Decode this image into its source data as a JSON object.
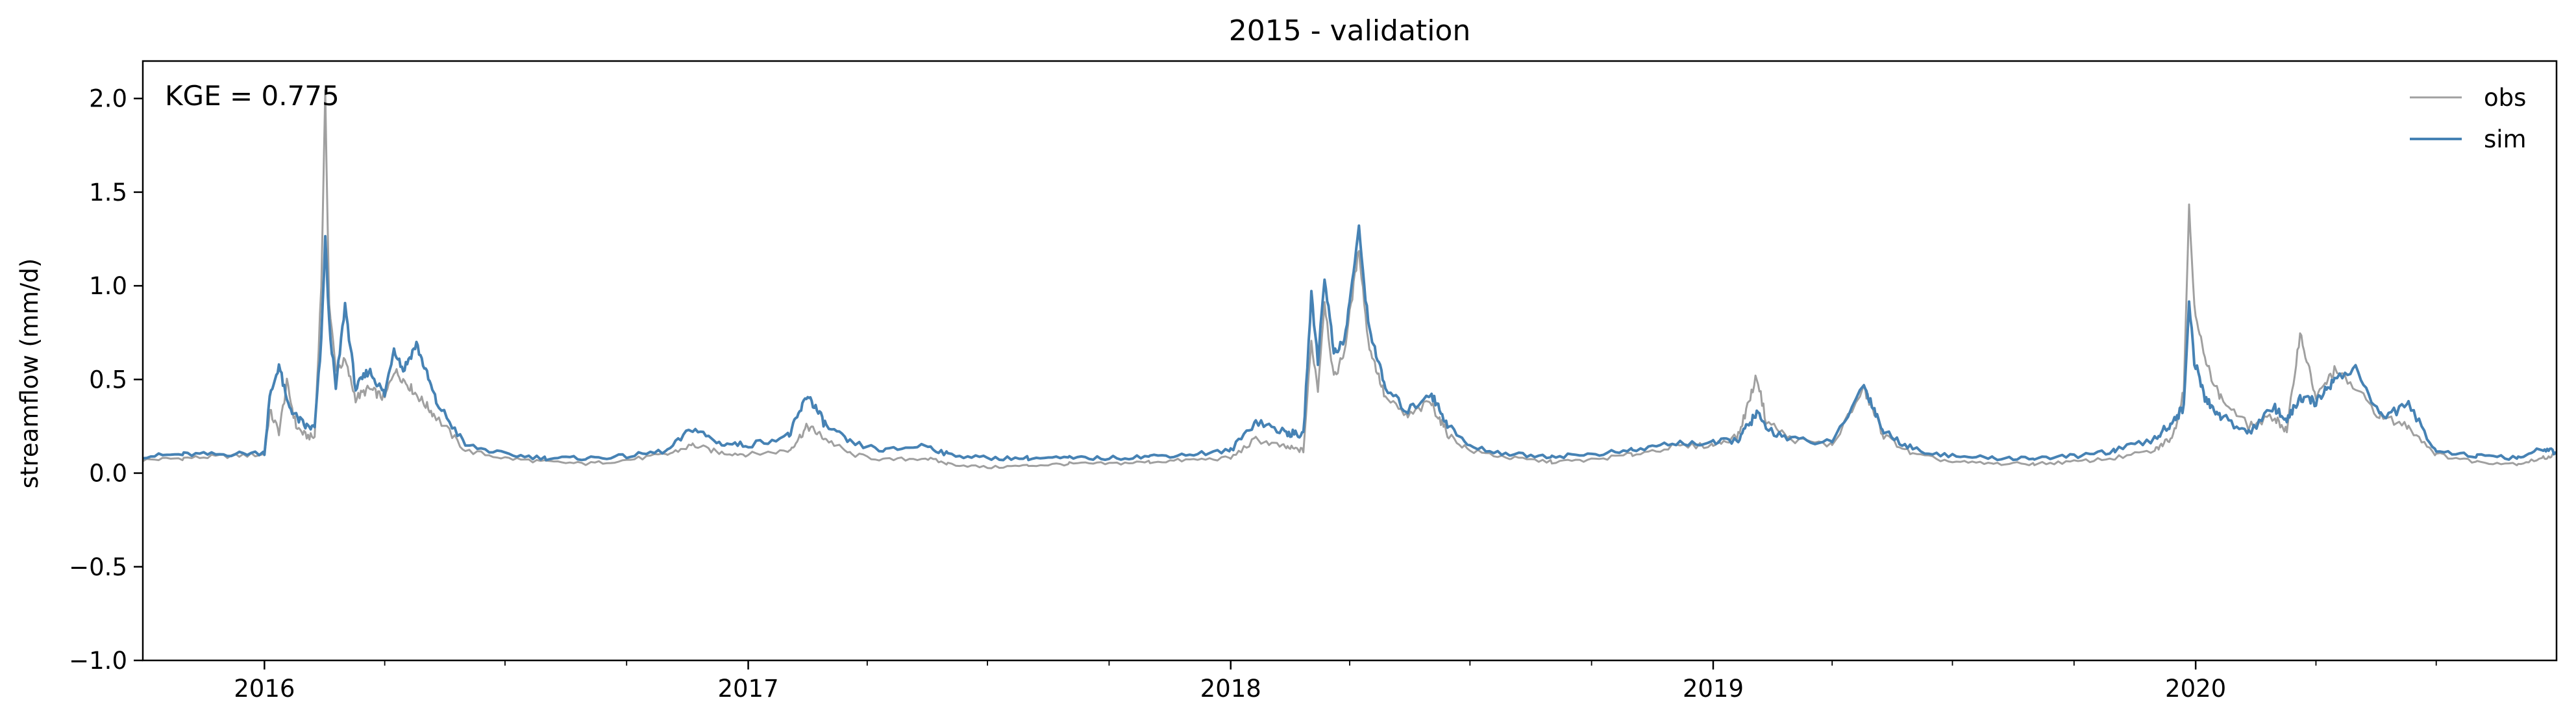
{
  "chart_data": {
    "type": "line",
    "title": "2015 - validation",
    "xlabel": "",
    "ylabel": "streamflow (mm/d)",
    "annotation": "KGE = 0.775",
    "xlim": [
      "2015-10-01",
      "2020-09-30"
    ],
    "ylim": [
      -1.0,
      2.2
    ],
    "x_ticks": [
      "2016-01-01",
      "2017-01-01",
      "2018-01-01",
      "2019-01-01",
      "2020-01-01"
    ],
    "x_tick_labels": [
      "2016",
      "2017",
      "2018",
      "2019",
      "2020"
    ],
    "y_ticks": [
      -1.0,
      -0.5,
      0.0,
      0.5,
      1.0,
      1.5,
      2.0
    ],
    "y_tick_labels": [
      "−1.0",
      "−0.5",
      "0.0",
      "0.5",
      "1.0",
      "1.5",
      "2.0"
    ],
    "grid": false,
    "legend": "top-right",
    "series": [
      {
        "name": "obs",
        "color": "#a0a0a0",
        "points": [
          [
            "2015-10-01",
            0.07
          ],
          [
            "2015-11-01",
            0.08
          ],
          [
            "2015-12-01",
            0.09
          ],
          [
            "2016-01-01",
            0.1
          ],
          [
            "2016-01-05",
            0.33
          ],
          [
            "2016-01-12",
            0.22
          ],
          [
            "2016-01-18",
            0.48
          ],
          [
            "2016-01-25",
            0.25
          ],
          [
            "2016-02-01",
            0.2
          ],
          [
            "2016-02-08",
            0.19
          ],
          [
            "2016-02-13",
            1.0
          ],
          [
            "2016-02-16",
            2.02
          ],
          [
            "2016-02-19",
            0.9
          ],
          [
            "2016-02-24",
            0.55
          ],
          [
            "2016-03-02",
            0.6
          ],
          [
            "2016-03-10",
            0.4
          ],
          [
            "2016-03-20",
            0.45
          ],
          [
            "2016-04-01",
            0.4
          ],
          [
            "2016-04-08",
            0.55
          ],
          [
            "2016-04-15",
            0.5
          ],
          [
            "2016-04-25",
            0.42
          ],
          [
            "2016-05-10",
            0.3
          ],
          [
            "2016-06-01",
            0.12
          ],
          [
            "2016-07-01",
            0.08
          ],
          [
            "2016-08-01",
            0.06
          ],
          [
            "2016-09-01",
            0.05
          ],
          [
            "2016-10-01",
            0.07
          ],
          [
            "2016-11-01",
            0.1
          ],
          [
            "2016-11-20",
            0.15
          ],
          [
            "2016-12-10",
            0.11
          ],
          [
            "2017-01-01",
            0.1
          ],
          [
            "2017-02-01",
            0.12
          ],
          [
            "2017-02-15",
            0.25
          ],
          [
            "2017-03-01",
            0.18
          ],
          [
            "2017-03-20",
            0.1
          ],
          [
            "2017-04-15",
            0.07
          ],
          [
            "2017-05-15",
            0.08
          ],
          [
            "2017-06-01",
            0.05
          ],
          [
            "2017-07-01",
            0.03
          ],
          [
            "2017-08-01",
            0.04
          ],
          [
            "2017-09-01",
            0.05
          ],
          [
            "2017-10-01",
            0.05
          ],
          [
            "2017-11-01",
            0.06
          ],
          [
            "2017-12-01",
            0.07
          ],
          [
            "2018-01-01",
            0.08
          ],
          [
            "2018-01-20",
            0.18
          ],
          [
            "2018-02-10",
            0.14
          ],
          [
            "2018-02-25",
            0.12
          ],
          [
            "2018-03-03",
            0.7
          ],
          [
            "2018-03-08",
            0.45
          ],
          [
            "2018-03-13",
            0.92
          ],
          [
            "2018-03-20",
            0.5
          ],
          [
            "2018-03-28",
            0.65
          ],
          [
            "2018-04-08",
            1.2
          ],
          [
            "2018-04-15",
            0.7
          ],
          [
            "2018-04-28",
            0.4
          ],
          [
            "2018-05-15",
            0.3
          ],
          [
            "2018-06-01",
            0.38
          ],
          [
            "2018-06-15",
            0.2
          ],
          [
            "2018-07-01",
            0.12
          ],
          [
            "2018-08-01",
            0.08
          ],
          [
            "2018-09-01",
            0.06
          ],
          [
            "2018-10-01",
            0.07
          ],
          [
            "2018-11-01",
            0.1
          ],
          [
            "2018-12-01",
            0.14
          ],
          [
            "2019-01-01",
            0.15
          ],
          [
            "2019-01-20",
            0.2
          ],
          [
            "2019-02-03",
            0.52
          ],
          [
            "2019-02-10",
            0.28
          ],
          [
            "2019-03-01",
            0.18
          ],
          [
            "2019-04-01",
            0.15
          ],
          [
            "2019-04-25",
            0.45
          ],
          [
            "2019-05-10",
            0.2
          ],
          [
            "2019-06-01",
            0.1
          ],
          [
            "2019-07-01",
            0.06
          ],
          [
            "2019-08-01",
            0.05
          ],
          [
            "2019-09-01",
            0.05
          ],
          [
            "2019-10-01",
            0.06
          ],
          [
            "2019-11-01",
            0.08
          ],
          [
            "2019-12-01",
            0.12
          ],
          [
            "2019-12-15",
            0.2
          ],
          [
            "2019-12-23",
            0.45
          ],
          [
            "2019-12-27",
            1.42
          ],
          [
            "2019-12-31",
            0.9
          ],
          [
            "2020-01-08",
            0.6
          ],
          [
            "2020-01-20",
            0.4
          ],
          [
            "2020-02-10",
            0.25
          ],
          [
            "2020-03-01",
            0.3
          ],
          [
            "2020-03-10",
            0.22
          ],
          [
            "2020-03-20",
            0.75
          ],
          [
            "2020-04-01",
            0.4
          ],
          [
            "2020-04-15",
            0.55
          ],
          [
            "2020-05-01",
            0.45
          ],
          [
            "2020-05-20",
            0.3
          ],
          [
            "2020-06-10",
            0.25
          ],
          [
            "2020-07-01",
            0.1
          ],
          [
            "2020-08-01",
            0.06
          ],
          [
            "2020-09-01",
            0.05
          ],
          [
            "2020-09-20",
            0.08
          ],
          [
            "2020-09-30",
            0.1
          ]
        ]
      },
      {
        "name": "sim",
        "color": "#4682b4",
        "points": [
          [
            "2015-10-01",
            0.09
          ],
          [
            "2015-11-01",
            0.1
          ],
          [
            "2015-12-01",
            0.1
          ],
          [
            "2016-01-01",
            0.11
          ],
          [
            "2016-01-05",
            0.4
          ],
          [
            "2016-01-12",
            0.58
          ],
          [
            "2016-01-18",
            0.38
          ],
          [
            "2016-01-25",
            0.3
          ],
          [
            "2016-02-01",
            0.25
          ],
          [
            "2016-02-08",
            0.24
          ],
          [
            "2016-02-13",
            0.7
          ],
          [
            "2016-02-16",
            1.26
          ],
          [
            "2016-02-19",
            0.8
          ],
          [
            "2016-02-24",
            0.45
          ],
          [
            "2016-03-02",
            0.9
          ],
          [
            "2016-03-10",
            0.45
          ],
          [
            "2016-03-20",
            0.55
          ],
          [
            "2016-04-01",
            0.42
          ],
          [
            "2016-04-08",
            0.67
          ],
          [
            "2016-04-15",
            0.55
          ],
          [
            "2016-04-25",
            0.69
          ],
          [
            "2016-05-10",
            0.38
          ],
          [
            "2016-06-01",
            0.15
          ],
          [
            "2016-07-01",
            0.1
          ],
          [
            "2016-08-01",
            0.08
          ],
          [
            "2016-09-01",
            0.08
          ],
          [
            "2016-10-01",
            0.09
          ],
          [
            "2016-11-01",
            0.12
          ],
          [
            "2016-11-20",
            0.24
          ],
          [
            "2016-12-10",
            0.16
          ],
          [
            "2017-01-01",
            0.15
          ],
          [
            "2017-02-01",
            0.2
          ],
          [
            "2017-02-15",
            0.42
          ],
          [
            "2017-03-01",
            0.25
          ],
          [
            "2017-03-20",
            0.16
          ],
          [
            "2017-04-15",
            0.12
          ],
          [
            "2017-05-15",
            0.15
          ],
          [
            "2017-06-01",
            0.1
          ],
          [
            "2017-07-01",
            0.08
          ],
          [
            "2017-08-01",
            0.08
          ],
          [
            "2017-09-01",
            0.08
          ],
          [
            "2017-10-01",
            0.08
          ],
          [
            "2017-11-01",
            0.09
          ],
          [
            "2017-12-01",
            0.1
          ],
          [
            "2018-01-01",
            0.12
          ],
          [
            "2018-01-20",
            0.28
          ],
          [
            "2018-02-10",
            0.22
          ],
          [
            "2018-02-25",
            0.2
          ],
          [
            "2018-03-03",
            0.95
          ],
          [
            "2018-03-08",
            0.6
          ],
          [
            "2018-03-13",
            1.05
          ],
          [
            "2018-03-20",
            0.65
          ],
          [
            "2018-03-28",
            0.7
          ],
          [
            "2018-04-08",
            1.3
          ],
          [
            "2018-04-15",
            0.8
          ],
          [
            "2018-04-28",
            0.45
          ],
          [
            "2018-05-15",
            0.33
          ],
          [
            "2018-06-01",
            0.43
          ],
          [
            "2018-06-15",
            0.25
          ],
          [
            "2018-07-01",
            0.14
          ],
          [
            "2018-08-01",
            0.1
          ],
          [
            "2018-09-01",
            0.09
          ],
          [
            "2018-10-01",
            0.1
          ],
          [
            "2018-11-01",
            0.12
          ],
          [
            "2018-12-01",
            0.16
          ],
          [
            "2019-01-01",
            0.16
          ],
          [
            "2019-01-20",
            0.18
          ],
          [
            "2019-02-03",
            0.32
          ],
          [
            "2019-02-10",
            0.24
          ],
          [
            "2019-03-01",
            0.18
          ],
          [
            "2019-04-01",
            0.16
          ],
          [
            "2019-04-25",
            0.47
          ],
          [
            "2019-05-10",
            0.22
          ],
          [
            "2019-06-01",
            0.13
          ],
          [
            "2019-07-01",
            0.09
          ],
          [
            "2019-08-01",
            0.08
          ],
          [
            "2019-09-01",
            0.08
          ],
          [
            "2019-10-01",
            0.09
          ],
          [
            "2019-11-01",
            0.12
          ],
          [
            "2019-12-01",
            0.18
          ],
          [
            "2019-12-15",
            0.28
          ],
          [
            "2019-12-23",
            0.35
          ],
          [
            "2019-12-27",
            0.92
          ],
          [
            "2019-12-31",
            0.6
          ],
          [
            "2020-01-08",
            0.4
          ],
          [
            "2020-01-20",
            0.3
          ],
          [
            "2020-02-10",
            0.22
          ],
          [
            "2020-03-01",
            0.35
          ],
          [
            "2020-03-10",
            0.28
          ],
          [
            "2020-03-20",
            0.4
          ],
          [
            "2020-04-01",
            0.38
          ],
          [
            "2020-04-15",
            0.5
          ],
          [
            "2020-05-01",
            0.56
          ],
          [
            "2020-05-20",
            0.3
          ],
          [
            "2020-06-10",
            0.36
          ],
          [
            "2020-07-01",
            0.12
          ],
          [
            "2020-08-01",
            0.09
          ],
          [
            "2020-09-01",
            0.08
          ],
          [
            "2020-09-20",
            0.13
          ],
          [
            "2020-09-30",
            0.11
          ]
        ]
      }
    ]
  }
}
